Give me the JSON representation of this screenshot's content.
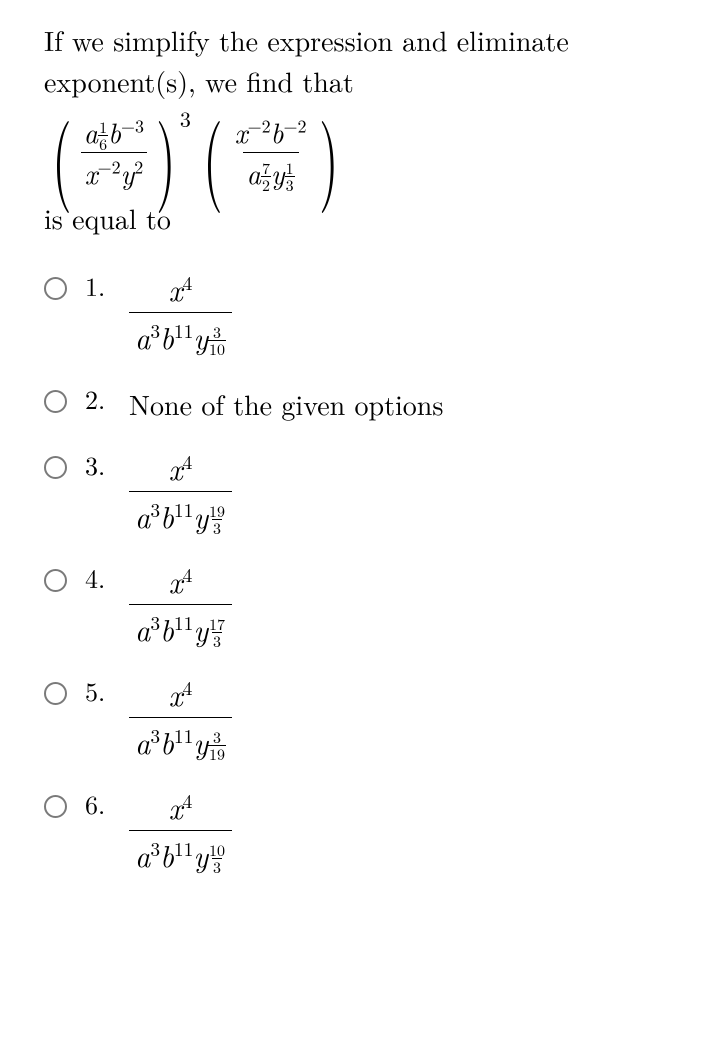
{
  "background_color": "#ffffff",
  "text_color": "#000000",
  "radio_border_color": "#7a7a7a",
  "font_family": "Latin Modern Roman serif",
  "question_fontsize": 28,
  "option_fontsize": 26,
  "question_lines": {
    "l1": "If we simplify the expression and eliminate",
    "l2": "exponent(s), we find that",
    "tail": "is equal to"
  },
  "expression": {
    "group1": {
      "num": {
        "base_a_exp_num": "1",
        "base_a_exp_den": "6",
        "b_exp": "−3"
      },
      "den": {
        "x_exp": "−2",
        "y_exp": "2"
      },
      "outer_exp": "3"
    },
    "group2": {
      "num": {
        "x_exp": "−2",
        "b_exp": "−2"
      },
      "den": {
        "a_exp_num": "7",
        "a_exp_den": "2",
        "y_exp_num": "1",
        "y_exp_den": "3"
      }
    }
  },
  "options": [
    {
      "n": "1.",
      "type": "frac",
      "num_x_exp": "4",
      "den_a_exp": "3",
      "den_b_exp": "11",
      "den_y_num": "3",
      "den_y_den": "10"
    },
    {
      "n": "2.",
      "type": "text",
      "text": "None of the given options"
    },
    {
      "n": "3.",
      "type": "frac",
      "num_x_exp": "4",
      "den_a_exp": "3",
      "den_b_exp": "11",
      "den_y_num": "19",
      "den_y_den": "3"
    },
    {
      "n": "4.",
      "type": "frac",
      "num_x_exp": "4",
      "den_a_exp": "3",
      "den_b_exp": "11",
      "den_y_num": "17",
      "den_y_den": "3"
    },
    {
      "n": "5.",
      "type": "frac",
      "num_x_exp": "4",
      "den_a_exp": "3",
      "den_b_exp": "11",
      "den_y_num": "3",
      "den_y_den": "19"
    },
    {
      "n": "6.",
      "type": "frac",
      "num_x_exp": "4",
      "den_a_exp": "3",
      "den_b_exp": "11",
      "den_y_num": "10",
      "den_y_den": "3"
    }
  ]
}
